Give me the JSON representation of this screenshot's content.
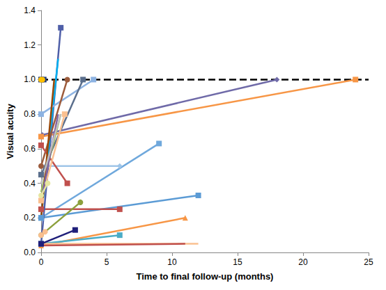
{
  "chart_data": {
    "type": "line",
    "x_label": "Time to final follow-up (months)",
    "y_label": "Visual acuity",
    "xlim": [
      0,
      25
    ],
    "xticks": [
      0,
      5,
      10,
      15,
      20,
      25
    ],
    "ylim": [
      0,
      1.4
    ],
    "yticks": [
      {
        "value": 0,
        "label": "0.0"
      },
      {
        "value": 0.2,
        "label": "0.2"
      },
      {
        "value": 0.4,
        "label": "0.4"
      },
      {
        "value": 0.6,
        "label": "0.6"
      },
      {
        "value": 0.8,
        "label": "0.8"
      },
      {
        "value": 1.0,
        "label": "1.0"
      },
      {
        "value": 1.2,
        "label": "1.2"
      },
      {
        "value": 1.4,
        "label": "1.4"
      }
    ],
    "grid": false,
    "series": [
      {
        "color": "#000000",
        "marker": "none",
        "line_style": "dashed",
        "x": [
          0,
          25
        ],
        "values": [
          1.0,
          1.0
        ]
      },
      {
        "color": "#6f6aa8",
        "marker": "diamond",
        "x": [
          0.1,
          18
        ],
        "values": [
          0.68,
          1.0
        ]
      },
      {
        "color": "#f79646",
        "marker": "square",
        "x": [
          0,
          24
        ],
        "values": [
          0.67,
          1.0
        ]
      },
      {
        "color": "#6fa8dc",
        "marker": "square",
        "x": [
          0,
          9
        ],
        "values": [
          0.2,
          0.63
        ]
      },
      {
        "color": "#9fc5e8",
        "marker": "diamond",
        "x": [
          0,
          6
        ],
        "values": [
          0.5,
          0.5
        ]
      },
      {
        "color": "#5b9bd5",
        "marker": "square",
        "x": [
          0,
          12
        ],
        "values": [
          0.2,
          0.33
        ]
      },
      {
        "color": "#f79646",
        "marker": "triangle",
        "x": [
          0,
          11
        ],
        "values": [
          0.04,
          0.2
        ]
      },
      {
        "color": "#c0504d",
        "marker": "square",
        "x": [
          0,
          6
        ],
        "values": [
          0.25,
          0.25
        ]
      },
      {
        "color": "#4bacc6",
        "marker": "square",
        "x": [
          0,
          6
        ],
        "values": [
          0.05,
          0.1
        ]
      },
      {
        "color": "#fac090",
        "marker": "none",
        "x": [
          0,
          12
        ],
        "values": [
          0.05,
          0.05
        ]
      },
      {
        "color": "#c0504d",
        "marker": "none",
        "x": [
          0,
          11
        ],
        "values": [
          0.04,
          0.05
        ]
      },
      {
        "color": "#4f5fa8",
        "marker": "square",
        "x": [
          0,
          1.5
        ],
        "values": [
          0.05,
          1.3
        ]
      },
      {
        "color": "#00b0f0",
        "marker": "none",
        "x": [
          0,
          1.3
        ],
        "values": [
          0.2,
          1.12
        ]
      },
      {
        "color": "#1f1f7a",
        "marker": "square",
        "x": [
          0,
          2.6
        ],
        "values": [
          0.05,
          0.13
        ]
      },
      {
        "color": "#8ca03c",
        "marker": "circle",
        "x": [
          0,
          3
        ],
        "values": [
          0.1,
          0.29
        ]
      },
      {
        "color": "#8db3e2",
        "marker": "square",
        "x": [
          0,
          4
        ],
        "values": [
          0.8,
          1.0
        ]
      },
      {
        "color": "#5a6e8c",
        "marker": "square",
        "x": [
          0,
          3.2
        ],
        "values": [
          0.45,
          1.0
        ]
      },
      {
        "color": "#9c5b3c",
        "marker": "circle",
        "x": [
          0,
          2
        ],
        "values": [
          0.5,
          1.0
        ]
      },
      {
        "color": "#c0504d",
        "marker": "square",
        "x": [
          0,
          2
        ],
        "values": [
          0.62,
          0.4
        ]
      },
      {
        "color": "#9bbb59",
        "marker": "none",
        "x": [
          0,
          1.5
        ],
        "values": [
          0.35,
          0.8
        ]
      },
      {
        "color": "#fac090",
        "marker": "square",
        "x": [
          0,
          1.8
        ],
        "values": [
          0.3,
          0.8
        ]
      },
      {
        "color": "#984807",
        "marker": "none",
        "x": [
          0,
          1
        ],
        "values": [
          0.2,
          1.0
        ]
      },
      {
        "color": "#1f3a7a",
        "marker": "square",
        "x": [
          0,
          0.2
        ],
        "values": [
          1.0,
          1.0
        ]
      },
      {
        "color": "#ffc000",
        "marker": "circle",
        "x": [
          0,
          0.1
        ],
        "values": [
          1.0,
          1.0
        ]
      },
      {
        "color": "#8064a2",
        "marker": "none",
        "x": [
          0,
          1.3
        ],
        "values": [
          0.3,
          0.8
        ]
      },
      {
        "color": "#bfbfbf",
        "marker": "none",
        "x": [
          0,
          1.5
        ],
        "values": [
          0.4,
          0.8
        ]
      },
      {
        "color": "#e6e6a0",
        "marker": "circle",
        "x": [
          0,
          0.5
        ],
        "values": [
          0.33,
          0.4
        ]
      },
      {
        "color": "#fabf8f",
        "marker": "circle",
        "x": [
          0,
          0.3
        ],
        "values": [
          0.1,
          0.12
        ]
      }
    ]
  }
}
